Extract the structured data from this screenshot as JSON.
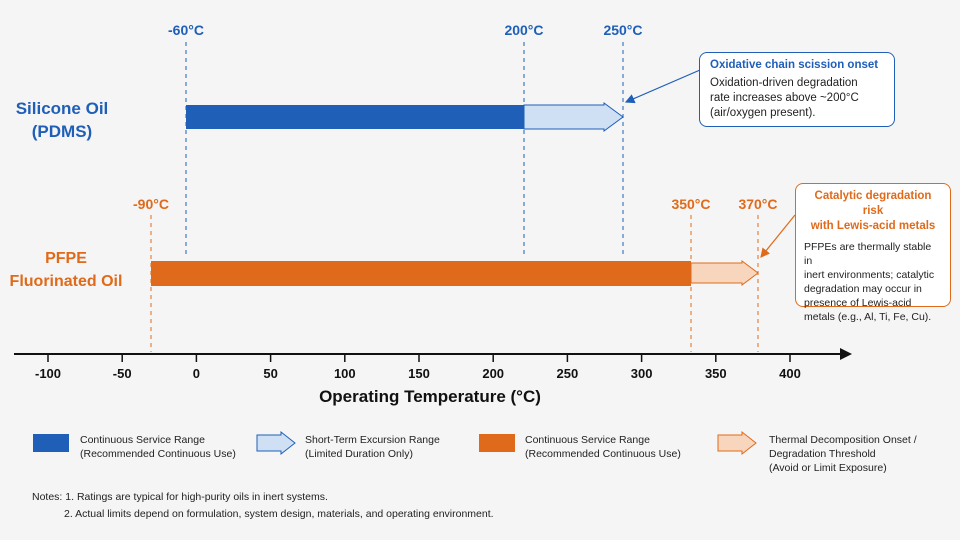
{
  "rows": {
    "pdms": {
      "label_line1": "Silicone Oil",
      "label_line2": "(PDMS)",
      "color": "#1f5fb8",
      "excursion_color": "#cfe0f5"
    },
    "pfpe": {
      "label_line1": "PFPE",
      "label_line2": "Fluorinated Oil",
      "color": "#e06a1b",
      "excursion_color": "#f8d5bd"
    }
  },
  "markers": {
    "pdms_min": "-60°C",
    "pdms_cont_max": "200°C",
    "pdms_excursion_max": "250°C",
    "pfpe_min": "-90°C",
    "pfpe_cont_max": "350°C",
    "pfpe_decomp": "370°C"
  },
  "chart_data": {
    "type": "range-bar",
    "xlabel": "Operating Temperature (°C)",
    "x_ticks": [
      -100,
      -50,
      0,
      50,
      100,
      150,
      200,
      250,
      300,
      350,
      400
    ],
    "x_tick_labels": [
      "-100",
      "-50",
      "0",
      "50",
      "100",
      "150",
      "200",
      "250",
      "300",
      "350",
      "400"
    ],
    "series": [
      {
        "name": "Silicone Oil (PDMS)",
        "continuous": [
          -60,
          200
        ],
        "short_term_excursion": [
          200,
          250
        ]
      },
      {
        "name": "PFPE Fluorinated Oil",
        "continuous": [
          -90,
          350
        ],
        "decomposition_onset": [
          350,
          370
        ]
      }
    ]
  },
  "callouts": {
    "pdms": {
      "title": "Oxidative chain scission onset",
      "body_lines": [
        "Oxidation-driven degradation",
        "rate increases above ~200°C",
        "(air/oxygen present)."
      ]
    },
    "pfpe": {
      "title_lines": [
        "Catalytic degradation risk",
        "with Lewis-acid metals"
      ],
      "body_lines": [
        "PFPEs are thermally stable in",
        "inert environments; catalytic",
        "degradation may occur in",
        "presence of Lewis-acid",
        "metals (e.g., Al, Ti, Fe, Cu)."
      ]
    }
  },
  "legend": [
    {
      "line1": "Continuous Service Range",
      "line2": "(Recommended Continuous Use)",
      "line3": ""
    },
    {
      "line1": "Short-Term Excursion Range",
      "line2": "(Limited Duration Only)",
      "line3": ""
    },
    {
      "line1": "Continuous Service Range",
      "line2": "(Recommended Continuous Use)",
      "line3": ""
    },
    {
      "line1": "Thermal Decomposition Onset /",
      "line2": "Degradation Threshold",
      "line3": "(Avoid or Limit Exposure)"
    }
  ],
  "notes": {
    "line1": "Notes: 1. Ratings are typical for high-purity oils in inert systems.",
    "line2": "2. Actual limits depend on formulation, system design, materials, and operating environment."
  }
}
